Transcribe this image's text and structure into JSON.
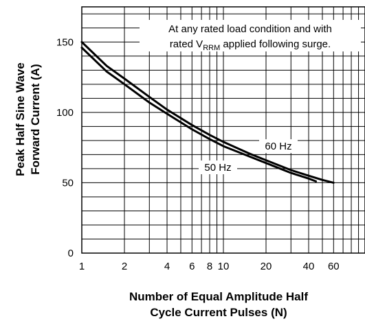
{
  "chart_data": {
    "type": "line",
    "title": "",
    "xlabel_lines": [
      "Number of Equal Amplitude Half",
      "Cycle Current Pulses (N)"
    ],
    "ylabel_lines": [
      "Peak Half Sine Wave",
      "Forward Current (A)"
    ],
    "x_scale": "log",
    "xlim": [
      1,
      100
    ],
    "ylim": [
      0,
      175
    ],
    "grid": true,
    "x_ticks": [
      {
        "value": 1,
        "label": "1"
      },
      {
        "value": 2,
        "label": "2"
      },
      {
        "value": 4,
        "label": "4"
      },
      {
        "value": 6,
        "label": "6"
      },
      {
        "value": 8,
        "label": "8"
      },
      {
        "value": 10,
        "label": "10"
      },
      {
        "value": 20,
        "label": "20"
      },
      {
        "value": 40,
        "label": "40"
      },
      {
        "value": 60,
        "label": "60"
      }
    ],
    "y_ticks": [
      {
        "value": 0,
        "label": "0"
      },
      {
        "value": 50,
        "label": "50"
      },
      {
        "value": 100,
        "label": "100"
      },
      {
        "value": 150,
        "label": "150"
      }
    ],
    "annotation": {
      "line1": "At any rated load condition and with",
      "line2_prefix": "rated V",
      "line2_sub": "RRM",
      "line2_suffix": " applied following surge."
    },
    "series": [
      {
        "name": "60 Hz",
        "x": [
          1,
          1.5,
          2,
          3,
          4,
          6,
          8,
          10,
          15,
          20,
          30,
          40,
          50,
          60
        ],
        "y": [
          150,
          133,
          124,
          111,
          102,
          91,
          84,
          79,
          71,
          66,
          59,
          55,
          52,
          50
        ]
      },
      {
        "name": "50 Hz",
        "x": [
          1,
          1.5,
          2,
          3,
          4,
          6,
          8,
          10,
          15,
          20,
          30,
          40,
          45
        ],
        "y": [
          146,
          129,
          120,
          107,
          99,
          88,
          81,
          76,
          69,
          64,
          57,
          53,
          51
        ]
      }
    ]
  }
}
